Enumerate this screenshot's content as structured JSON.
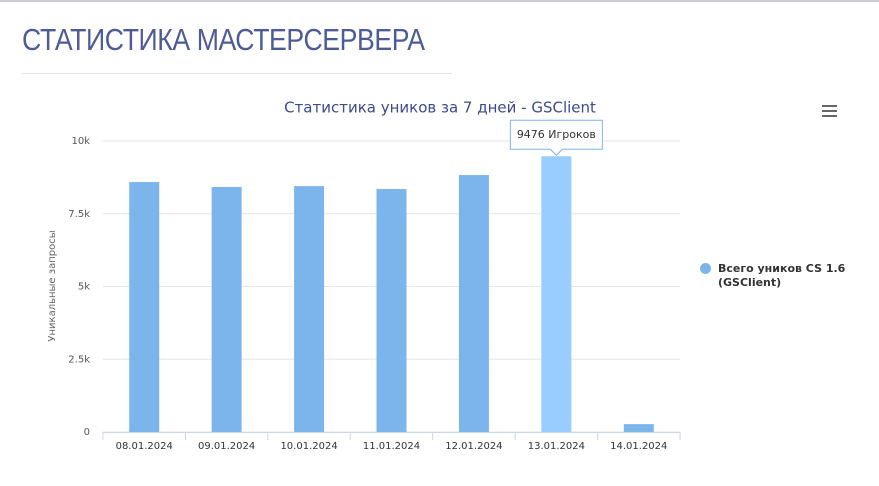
{
  "page_title": "СТАТИСТИКА МАСТЕРСЕРВЕРА",
  "chart_data": {
    "type": "bar",
    "title": "Статистика уников за 7 дней - GSClient",
    "y_label": "Уникальные запросы",
    "categories": [
      "08.01.2024",
      "09.01.2024",
      "10.01.2024",
      "11.01.2024",
      "12.01.2024",
      "13.01.2024",
      "14.01.2024"
    ],
    "series": [
      {
        "name": "Всего уников CS 1.6 (GSClient)",
        "color": "#7cb5ec",
        "values": [
          8590,
          8420,
          8450,
          8350,
          8830,
          9476,
          270
        ],
        "value_labels": [
          null,
          null,
          null,
          null,
          null,
          "9476 Игроков",
          null
        ]
      }
    ],
    "ylim": [
      0,
      10000
    ],
    "yticks": [
      {
        "value": 0,
        "label": "0"
      },
      {
        "value": 2500,
        "label": "2.5k"
      },
      {
        "value": 5000,
        "label": "5k"
      },
      {
        "value": 7500,
        "label": "7.5k"
      },
      {
        "value": 10000,
        "label": "10k"
      }
    ],
    "grid": true,
    "legend": "right"
  }
}
